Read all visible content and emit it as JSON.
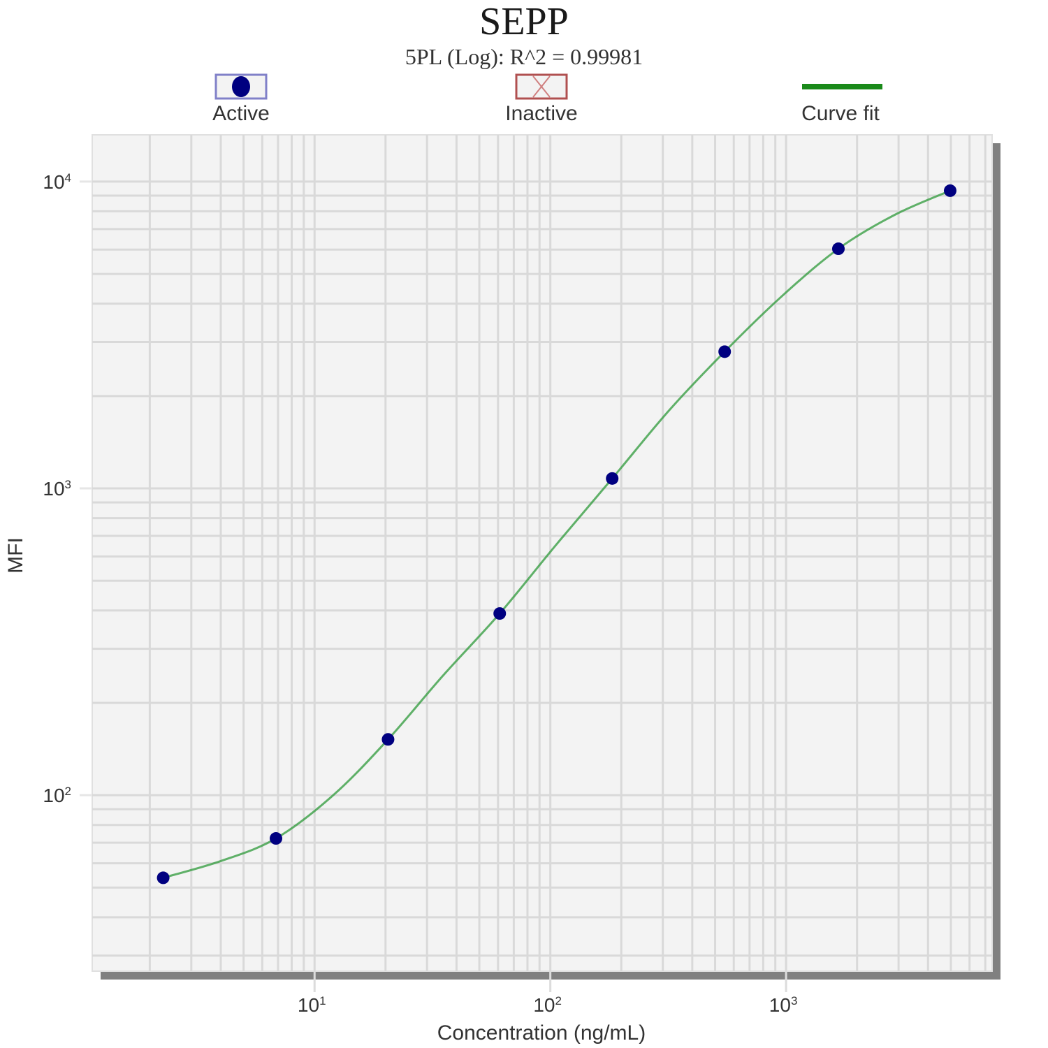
{
  "header": {
    "title": "SEPP",
    "subtitle": "5PL (Log): R^2 = 0.99981"
  },
  "legend": [
    {
      "label": "Active",
      "icon": "filled-circle-marker-icon",
      "color": "#000080"
    },
    {
      "label": "Inactive",
      "icon": "x-marker-icon",
      "color": "#b05050"
    },
    {
      "label": "Curve fit",
      "icon": "line-icon",
      "color": "#1a8a1a"
    }
  ],
  "axes": {
    "xlabel": "Concentration (ng/mL)",
    "ylabel": "MFI",
    "xticks": [
      {
        "base": "10",
        "exp": "1"
      },
      {
        "base": "10",
        "exp": "2"
      },
      {
        "base": "10",
        "exp": "3"
      }
    ],
    "yticks": [
      {
        "base": "10",
        "exp": "4"
      },
      {
        "base": "10",
        "exp": "3"
      },
      {
        "base": "10",
        "exp": "2"
      }
    ]
  },
  "colors": {
    "plot_bg": "#f3f3f3",
    "grid": "#d9d9d9",
    "shadow": "#7f7f7f",
    "marker": "#000080",
    "curve": "#2e9a3a"
  },
  "chart_data": {
    "type": "scatter",
    "title": "SEPP",
    "subtitle": "5PL (Log): R^2 = 0.99981",
    "xlabel": "Concentration (ng/mL)",
    "ylabel": "MFI",
    "xscale": "log",
    "yscale": "log",
    "xlim": [
      1.14,
      7480
    ],
    "ylim": [
      26.7,
      14200
    ],
    "grid": true,
    "legend_position": "top",
    "legend": [
      "Active",
      "Inactive",
      "Curve fit"
    ],
    "series": [
      {
        "name": "Active",
        "type": "scatter",
        "x": [
          2.28,
          6.86,
          20.5,
          61.0,
          183,
          549,
          1667,
          4966
        ],
        "y": [
          53.8,
          72.3,
          152,
          391,
          1077,
          2790,
          6040,
          9340
        ]
      },
      {
        "name": "Inactive",
        "type": "scatter",
        "x": [],
        "y": []
      },
      {
        "name": "Curve fit",
        "type": "line",
        "model": "5PL (Log)",
        "r_squared": 0.99981,
        "x": [
          2.28,
          4.0,
          6.86,
          12,
          20.5,
          35,
          61.0,
          105,
          183,
          320,
          549,
          950,
          1667,
          2900,
          4966
        ],
        "y": [
          53.8,
          61,
          72.3,
          100,
          152,
          245,
          391,
          650,
          1077,
          1800,
          2790,
          4200,
          6040,
          7800,
          9340
        ]
      }
    ]
  }
}
